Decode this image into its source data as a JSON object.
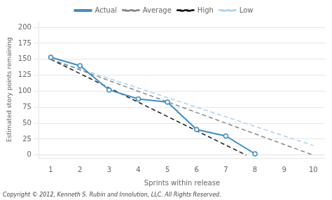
{
  "chart_data": {
    "type": "line",
    "xlabel": "Sprints within release",
    "ylabel": "Estimated story points remaining",
    "xlim": [
      0.6,
      10.4
    ],
    "xticks": [
      1,
      2,
      3,
      4,
      5,
      6,
      7,
      8,
      9,
      10
    ],
    "ylim": [
      -5,
      210
    ],
    "yticks": [
      0,
      25,
      50,
      75,
      100,
      125,
      150,
      175,
      200
    ],
    "grid": "y",
    "legend": "top",
    "annotations": [
      "Copyright © 2012, Kenneth S. Rubin and Innolution, LLC. All Rights Reserved."
    ],
    "series": [
      {
        "name": "Actual",
        "color": "#3d8fc8",
        "line_style": "solid",
        "marker": "circle",
        "x": [
          1,
          2,
          3,
          4,
          5,
          6,
          7,
          8
        ],
        "values": [
          153,
          140,
          102,
          88,
          83,
          40,
          30,
          2
        ]
      },
      {
        "name": "Average",
        "color": "#888888",
        "line_style": "dashed",
        "x": [
          1,
          10
        ],
        "values": [
          150,
          0
        ]
      },
      {
        "name": "High",
        "color": "#1a1a1a",
        "line_style": "dashed",
        "x": [
          1,
          7.7
        ],
        "values": [
          150,
          0
        ]
      },
      {
        "name": "Low",
        "color": "#aad4f0",
        "line_style": "dashed",
        "x": [
          1,
          10
        ],
        "values": [
          150,
          15
        ]
      }
    ]
  }
}
